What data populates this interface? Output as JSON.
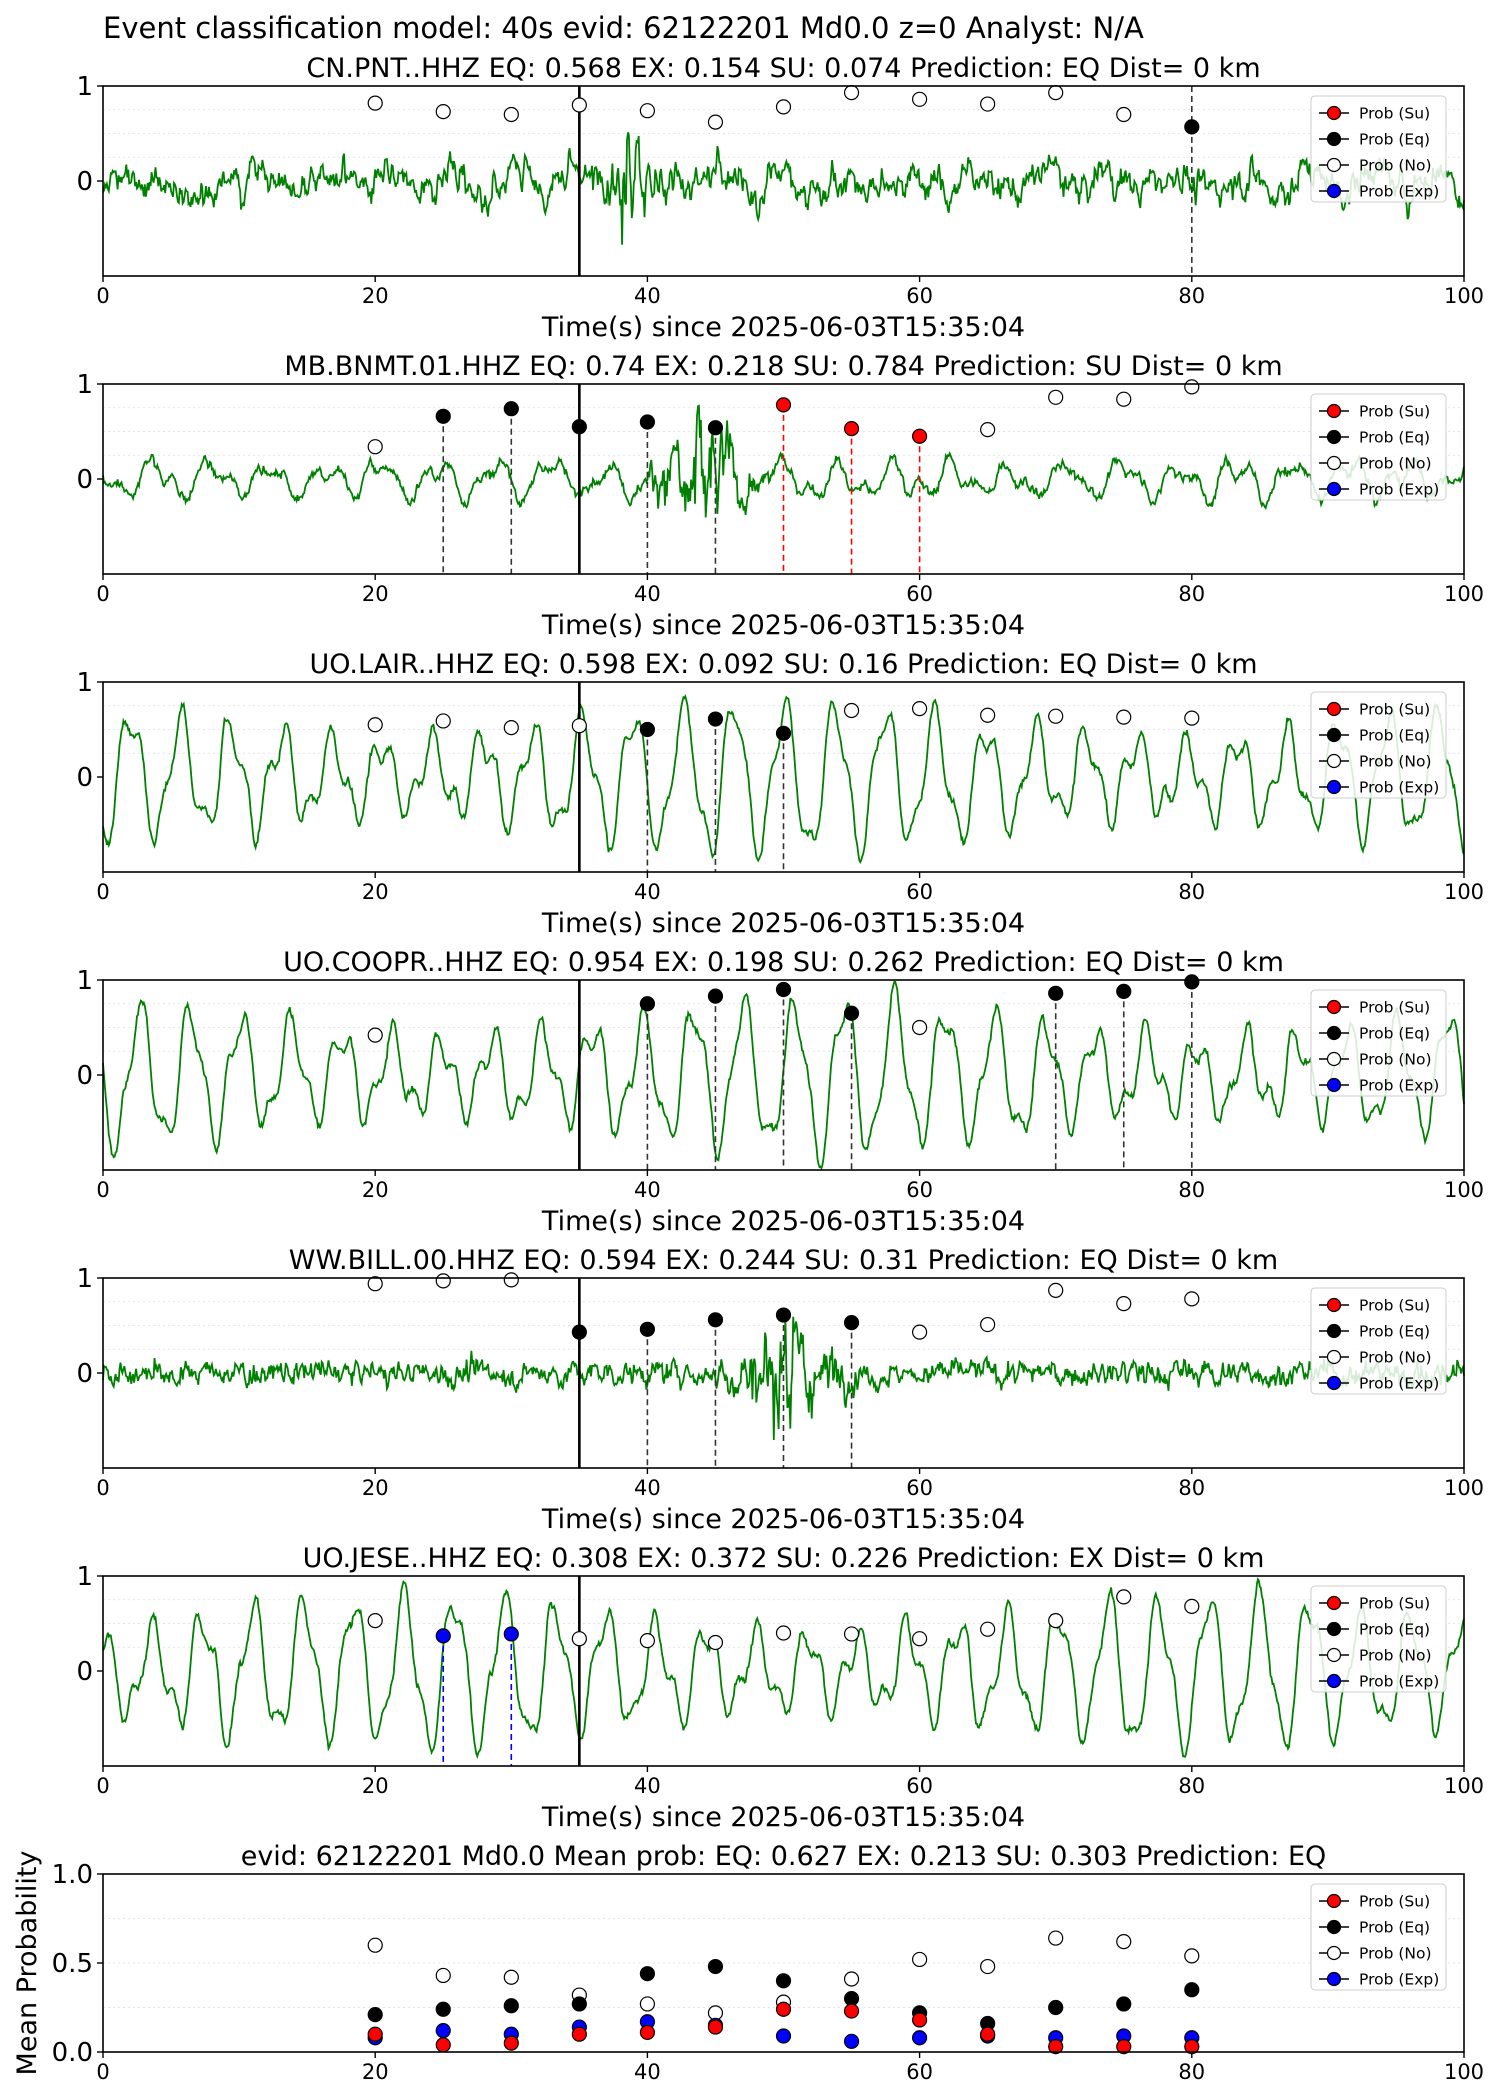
{
  "figure": {
    "suptitle": "Event classification model: 40s evid: 62122201 Md0.0 z=0 Analyst: N/A"
  },
  "legend": {
    "entries": [
      {
        "label": "Prob (Su)",
        "color": "#ff0000"
      },
      {
        "label": "Prob (Eq)",
        "color": "#000000"
      },
      {
        "label": "Prob (No)",
        "color": "#ffffff"
      },
      {
        "label": "Prob (Exp)",
        "color": "#0000ff"
      }
    ]
  },
  "colors": {
    "waveform": "#008000",
    "su": "#ff0000",
    "eq": "#000000",
    "no": "#ffffff",
    "exp": "#0000ff"
  },
  "chart_data": [
    {
      "type": "line",
      "title": "CN.PNT..HHZ   EQ: 0.568  EX: 0.154  SU: 0.074   Prediction: EQ    Dist= 0 km",
      "xlabel": "Time(s) since 2025-06-03T15:35:04",
      "xlim": [
        0,
        100
      ],
      "ylim": [
        -1,
        1
      ],
      "xticks": [
        0,
        20,
        40,
        60,
        80,
        100
      ],
      "yticks": [
        0,
        1
      ],
      "pick_time": 35,
      "waveform_style": "broadband",
      "seed": 11,
      "series": [
        {
          "name": "Prob (No)",
          "x": [
            20,
            25,
            30,
            35,
            40,
            45,
            50,
            55,
            60,
            65,
            70,
            75
          ],
          "y": [
            0.82,
            0.73,
            0.7,
            0.8,
            0.74,
            0.62,
            0.78,
            0.93,
            0.86,
            0.81,
            0.93,
            0.7
          ]
        },
        {
          "name": "Prob (Eq)",
          "x": [
            80
          ],
          "y": [
            0.57
          ]
        }
      ],
      "dashed_markers": [
        {
          "x": 80,
          "class": "Eq"
        }
      ]
    },
    {
      "type": "line",
      "title": "MB.BNMT.01.HHZ   EQ: 0.74  EX: 0.218  SU: 0.784   Prediction: SU    Dist= 0 km",
      "xlabel": "Time(s) since 2025-06-03T15:35:04",
      "xlim": [
        0,
        100
      ],
      "ylim": [
        -1,
        1
      ],
      "xticks": [
        0,
        20,
        40,
        60,
        80,
        100
      ],
      "yticks": [
        0,
        1
      ],
      "pick_time": 35,
      "waveform_style": "burst",
      "seed": 23,
      "series": [
        {
          "name": "Prob (No)",
          "x": [
            20,
            65,
            70,
            75,
            80
          ],
          "y": [
            0.34,
            0.52,
            0.86,
            0.84,
            0.97
          ]
        },
        {
          "name": "Prob (Eq)",
          "x": [
            25,
            30,
            35,
            40,
            45
          ],
          "y": [
            0.66,
            0.74,
            0.55,
            0.6,
            0.54
          ]
        },
        {
          "name": "Prob (Su)",
          "x": [
            50,
            55,
            60
          ],
          "y": [
            0.78,
            0.53,
            0.45
          ]
        }
      ],
      "dashed_markers": [
        {
          "x": 25,
          "class": "Eq"
        },
        {
          "x": 30,
          "class": "Eq"
        },
        {
          "x": 40,
          "class": "Eq"
        },
        {
          "x": 45,
          "class": "Eq"
        },
        {
          "x": 50,
          "class": "Su"
        },
        {
          "x": 55,
          "class": "Su"
        },
        {
          "x": 60,
          "class": "Su"
        }
      ]
    },
    {
      "type": "line",
      "title": "UO.LAIR..HHZ   EQ: 0.598  EX: 0.092  SU: 0.16   Prediction: EQ    Dist= 0 km",
      "xlabel": "Time(s) since 2025-06-03T15:35:04",
      "xlim": [
        0,
        100
      ],
      "ylim": [
        -1,
        1
      ],
      "xticks": [
        0,
        20,
        40,
        60,
        80,
        100
      ],
      "yticks": [
        0,
        1
      ],
      "pick_time": 35,
      "waveform_style": "wave",
      "seed": 37,
      "series": [
        {
          "name": "Prob (No)",
          "x": [
            20,
            25,
            30,
            35,
            55,
            60,
            65,
            70,
            75,
            80
          ],
          "y": [
            0.55,
            0.59,
            0.52,
            0.54,
            0.7,
            0.72,
            0.65,
            0.64,
            0.63,
            0.62
          ]
        },
        {
          "name": "Prob (Eq)",
          "x": [
            40,
            45,
            50
          ],
          "y": [
            0.5,
            0.61,
            0.46
          ]
        }
      ],
      "dashed_markers": [
        {
          "x": 40,
          "class": "Eq"
        },
        {
          "x": 45,
          "class": "Eq"
        },
        {
          "x": 50,
          "class": "Eq"
        }
      ]
    },
    {
      "type": "line",
      "title": "UO.COOPR..HHZ   EQ: 0.954  EX: 0.198  SU: 0.262   Prediction: EQ    Dist= 0 km",
      "xlabel": "Time(s) since 2025-06-03T15:35:04",
      "xlim": [
        0,
        100
      ],
      "ylim": [
        -1,
        1
      ],
      "xticks": [
        0,
        20,
        40,
        60,
        80,
        100
      ],
      "yticks": [
        0,
        1
      ],
      "pick_time": 35,
      "waveform_style": "wave",
      "seed": 41,
      "series": [
        {
          "name": "Prob (No)",
          "x": [
            20,
            60
          ],
          "y": [
            0.42,
            0.5
          ]
        },
        {
          "name": "Prob (Eq)",
          "x": [
            40,
            45,
            50,
            55,
            70,
            75,
            80
          ],
          "y": [
            0.75,
            0.83,
            0.9,
            0.65,
            0.86,
            0.88,
            0.98
          ]
        }
      ],
      "dashed_markers": [
        {
          "x": 40,
          "class": "Eq"
        },
        {
          "x": 45,
          "class": "Eq"
        },
        {
          "x": 50,
          "class": "Eq"
        },
        {
          "x": 55,
          "class": "Eq"
        },
        {
          "x": 70,
          "class": "Eq"
        },
        {
          "x": 75,
          "class": "Eq"
        },
        {
          "x": 80,
          "class": "Eq"
        }
      ]
    },
    {
      "type": "line",
      "title": "WW.BILL.00.HHZ   EQ: 0.594  EX: 0.244  SU: 0.31   Prediction: EQ    Dist= 0 km",
      "xlabel": "Time(s) since 2025-06-03T15:35:04",
      "xlim": [
        0,
        100
      ],
      "ylim": [
        -1,
        1
      ],
      "xticks": [
        0,
        20,
        40,
        60,
        80,
        100
      ],
      "yticks": [
        0,
        1
      ],
      "pick_time": 35,
      "waveform_style": "noisy_burst",
      "seed": 53,
      "series": [
        {
          "name": "Prob (No)",
          "x": [
            20,
            25,
            30,
            60,
            65,
            70,
            75,
            80
          ],
          "y": [
            0.94,
            0.97,
            0.98,
            0.43,
            0.51,
            0.87,
            0.73,
            0.78
          ]
        },
        {
          "name": "Prob (Eq)",
          "x": [
            35,
            40,
            45,
            50,
            55
          ],
          "y": [
            0.43,
            0.46,
            0.56,
            0.61,
            0.53
          ]
        }
      ],
      "dashed_markers": [
        {
          "x": 40,
          "class": "Eq"
        },
        {
          "x": 45,
          "class": "Eq"
        },
        {
          "x": 50,
          "class": "Eq"
        },
        {
          "x": 55,
          "class": "Eq"
        }
      ]
    },
    {
      "type": "line",
      "title": "UO.JESE..HHZ   EQ: 0.308  EX: 0.372  SU: 0.226   Prediction: EX    Dist= 0 km",
      "xlabel": "Time(s) since 2025-06-03T15:35:04",
      "xlim": [
        0,
        100
      ],
      "ylim": [
        -1,
        1
      ],
      "xticks": [
        0,
        20,
        40,
        60,
        80,
        100
      ],
      "yticks": [
        0,
        1
      ],
      "pick_time": 35,
      "waveform_style": "wave",
      "seed": 67,
      "series": [
        {
          "name": "Prob (No)",
          "x": [
            20,
            35,
            40,
            45,
            50,
            55,
            60,
            65,
            70,
            75,
            80
          ],
          "y": [
            0.53,
            0.34,
            0.32,
            0.3,
            0.4,
            0.39,
            0.34,
            0.44,
            0.53,
            0.78,
            0.68
          ]
        },
        {
          "name": "Prob (Exp)",
          "x": [
            25,
            30
          ],
          "y": [
            0.37,
            0.39
          ]
        }
      ],
      "dashed_markers": [
        {
          "x": 25,
          "class": "Exp"
        },
        {
          "x": 30,
          "class": "Exp"
        }
      ]
    },
    {
      "type": "scatter",
      "title": "evid: 62122201  Md0.0   Mean prob:   EQ: 0.627  EX: 0.213  SU: 0.303   Prediction: EQ",
      "ylabel": "Mean Probability",
      "xlim": [
        0,
        100
      ],
      "ylim": [
        0,
        1
      ],
      "xticks": [
        0,
        20,
        40,
        60,
        80,
        100
      ],
      "yticks": [
        0.0,
        0.5,
        1.0
      ],
      "ytick_labels": [
        "0.0",
        "0.5",
        "1.0"
      ],
      "x": [
        20,
        25,
        30,
        35,
        40,
        45,
        50,
        55,
        60,
        65,
        70,
        75,
        80
      ],
      "series": [
        {
          "name": "Prob (No)",
          "y": [
            0.6,
            0.43,
            0.42,
            0.32,
            0.27,
            0.22,
            0.28,
            0.41,
            0.52,
            0.48,
            0.64,
            0.62,
            0.54
          ]
        },
        {
          "name": "Prob (Eq)",
          "y": [
            0.21,
            0.24,
            0.26,
            0.27,
            0.44,
            0.48,
            0.4,
            0.3,
            0.22,
            0.16,
            0.25,
            0.27,
            0.35
          ]
        },
        {
          "name": "Prob (Exp)",
          "y": [
            0.08,
            0.12,
            0.1,
            0.14,
            0.17,
            0.15,
            0.09,
            0.06,
            0.08,
            0.09,
            0.08,
            0.09,
            0.08
          ]
        },
        {
          "name": "Prob (Su)",
          "y": [
            0.1,
            0.04,
            0.05,
            0.1,
            0.11,
            0.14,
            0.24,
            0.23,
            0.18,
            0.1,
            0.03,
            0.03,
            0.03
          ]
        }
      ]
    }
  ]
}
